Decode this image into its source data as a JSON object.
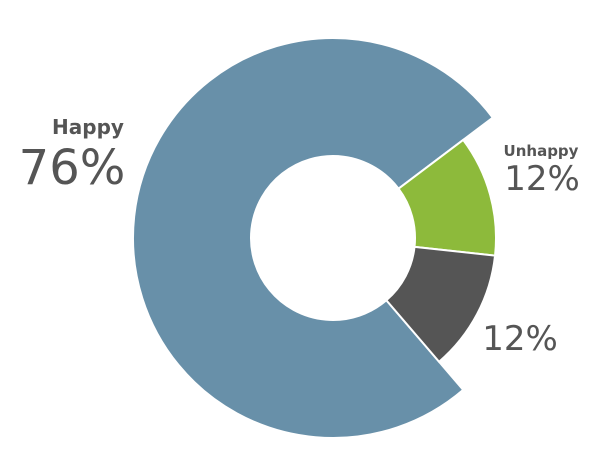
{
  "chart_data": {
    "type": "donut",
    "categories": [
      "Happy",
      "Unhappy",
      null
    ],
    "values": [
      76,
      12,
      12
    ],
    "value_labels": [
      "76%",
      "12%",
      "12%"
    ],
    "colors": [
      "#6890a9",
      "#8dba3b",
      "#555555"
    ]
  }
}
